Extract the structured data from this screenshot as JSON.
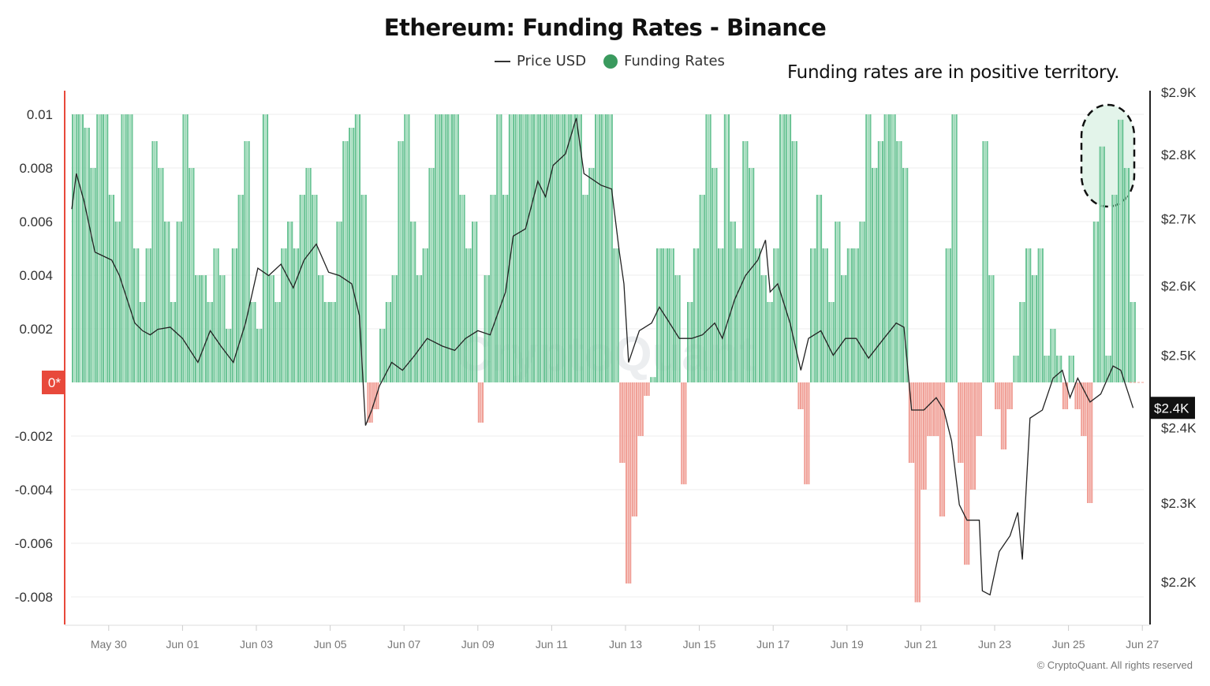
{
  "title": "Ethereum: Funding Rates - Binance",
  "legend": {
    "price_label": "Price USD",
    "funding_label": "Funding Rates"
  },
  "annotation": "Funding rates are in positive territory.",
  "copyright": "© CryptoQuant. All rights reserved",
  "watermark": "CryptoQuant",
  "colors": {
    "positive": "#6cc496",
    "positive_alt": "#a3dcbc",
    "negative": "#f0a097",
    "price_line": "#222222",
    "zero_badge": "#e8493b",
    "left_axis": "#e8493b",
    "highlight_fill": "#e3f4ea"
  },
  "chart_data": {
    "type": "bar+line",
    "title": "Ethereum: Funding Rates - Binance",
    "left_axis": {
      "ticks": [
        "0.01",
        "0.008",
        "0.006",
        "0.004",
        "0.002",
        "0*",
        "-0.002",
        "-0.004",
        "-0.006",
        "-0.008"
      ],
      "range": [
        -0.009,
        0.01
      ]
    },
    "right_axis": {
      "scale": "log",
      "ticks": [
        "$2.9K",
        "$2.8K",
        "$2.7K",
        "$2.6K",
        "$2.5K",
        "$2.4K",
        "$2.3K",
        "$2.2K"
      ],
      "tick_values": [
        2900,
        2800,
        2700,
        2600,
        2500,
        2400,
        2300,
        2200
      ],
      "current_price_badge": "$2.4K",
      "current_price": 2427
    },
    "x_ticks": [
      "May 30",
      "Jun 01",
      "Jun 03",
      "Jun 05",
      "Jun 07",
      "Jun 09",
      "Jun 11",
      "Jun 13",
      "Jun 15",
      "Jun 17",
      "Jun 19",
      "Jun 21",
      "Jun 23",
      "Jun 25",
      "Jun 27"
    ],
    "grid": true,
    "highlight": "last two funding rate peaks (dashed outline)",
    "funding_rates_4h": [
      {
        "date": "05-29",
        "values": [
          0.01,
          0.01,
          0.0095,
          0.008,
          0.01,
          0.01
        ]
      },
      {
        "date": "05-30",
        "values": [
          0.007,
          0.006,
          0.01,
          0.01,
          0.005,
          0.003
        ]
      },
      {
        "date": "05-31",
        "values": [
          0.005,
          0.009,
          0.008,
          0.006,
          0.003,
          0.006
        ]
      },
      {
        "date": "06-01",
        "values": [
          0.01,
          0.008,
          0.004,
          0.004,
          0.003,
          0.005
        ]
      },
      {
        "date": "06-02",
        "values": [
          0.004,
          0.002,
          0.005,
          0.007,
          0.009,
          0.003
        ]
      },
      {
        "date": "06-03",
        "values": [
          0.002,
          0.01,
          0.004,
          0.003,
          0.005,
          0.006
        ]
      },
      {
        "date": "06-04",
        "values": [
          0.005,
          0.007,
          0.008,
          0.007,
          0.004,
          0.003
        ]
      },
      {
        "date": "06-05",
        "values": [
          0.003,
          0.006,
          0.009,
          0.0095,
          0.01,
          0.007
        ]
      },
      {
        "date": "06-06",
        "values": [
          -0.0015,
          -0.001,
          0.002,
          0.003,
          0.004,
          0.009
        ]
      },
      {
        "date": "06-07",
        "values": [
          0.01,
          0.006,
          0.004,
          0.005,
          0.008,
          0.01
        ]
      },
      {
        "date": "06-08",
        "values": [
          0.01,
          0.01,
          0.01,
          0.007,
          0.005,
          0.006
        ]
      },
      {
        "date": "06-09",
        "values": [
          -0.0015,
          0.004,
          0.007,
          0.01,
          0.007,
          0.01
        ]
      },
      {
        "date": "06-10",
        "values": [
          0.01,
          0.01,
          0.01,
          0.01,
          0.01,
          0.01
        ]
      },
      {
        "date": "06-11",
        "values": [
          0.01,
          0.01,
          0.01,
          0.01,
          0.01,
          0.007
        ]
      },
      {
        "date": "06-12",
        "values": [
          0.008,
          0.01,
          0.01,
          0.01,
          0.005,
          -0.003
        ]
      },
      {
        "date": "06-13",
        "values": [
          -0.0075,
          -0.005,
          -0.002,
          -0.0005,
          0.0002,
          0.005
        ]
      },
      {
        "date": "06-14",
        "values": [
          0.005,
          0.005,
          0.004,
          -0.0038,
          0.003,
          0.005
        ]
      },
      {
        "date": "06-15",
        "values": [
          0.007,
          0.01,
          0.008,
          0.005,
          0.01,
          0.006
        ]
      },
      {
        "date": "06-16",
        "values": [
          0.005,
          0.009,
          0.008,
          0.005,
          0.004,
          0.003
        ]
      },
      {
        "date": "06-17",
        "values": [
          0.005,
          0.01,
          0.01,
          0.009,
          -0.001,
          -0.0038
        ]
      },
      {
        "date": "06-18",
        "values": [
          0.005,
          0.007,
          0.005,
          0.003,
          0.006,
          0.004
        ]
      },
      {
        "date": "06-19",
        "values": [
          0.005,
          0.005,
          0.006,
          0.01,
          0.008,
          0.009
        ]
      },
      {
        "date": "06-20",
        "values": [
          0.01,
          0.01,
          0.009,
          0.008,
          -0.003,
          -0.0082
        ]
      },
      {
        "date": "06-21",
        "values": [
          -0.004,
          -0.002,
          -0.002,
          -0.005,
          0.005,
          0.01
        ]
      },
      {
        "date": "06-22",
        "values": [
          -0.003,
          -0.0068,
          -0.004,
          -0.002,
          0.009,
          0.004
        ]
      },
      {
        "date": "06-23",
        "values": [
          -0.001,
          -0.0025,
          -0.001,
          0.001,
          0.003,
          0.005
        ]
      },
      {
        "date": "06-24",
        "values": [
          0.004,
          0.005,
          0.001,
          0.002,
          0.001,
          -0.001
        ]
      },
      {
        "date": "06-25",
        "values": [
          0.001,
          -0.001,
          -0.002,
          -0.0045,
          0.006,
          0.0088
        ]
      },
      {
        "date": "06-26",
        "values": [
          0.001,
          0.007,
          0.0098,
          0.008,
          0.003
        ]
      }
    ],
    "price_usd": [
      [
        "05-29T00:00",
        2715
      ],
      [
        "05-29T03:00",
        2770
      ],
      [
        "05-29T08:00",
        2727
      ],
      [
        "05-29T15:00",
        2650
      ],
      [
        "05-30T02:00",
        2638
      ],
      [
        "05-30T07:00",
        2615
      ],
      [
        "05-30T17:00",
        2546
      ],
      [
        "05-30T22:00",
        2535
      ],
      [
        "05-31T03:00",
        2529
      ],
      [
        "05-31T08:00",
        2537
      ],
      [
        "05-31T16:00",
        2540
      ],
      [
        "06-01T00:00",
        2524
      ],
      [
        "06-01T10:00",
        2490
      ],
      [
        "06-01T18:00",
        2535
      ],
      [
        "06-02T01:00",
        2513
      ],
      [
        "06-02T09:00",
        2490
      ],
      [
        "06-02T17:00",
        2546
      ],
      [
        "06-03T01:00",
        2626
      ],
      [
        "06-03T08:00",
        2615
      ],
      [
        "06-03T16:00",
        2632
      ],
      [
        "06-04T00:00",
        2597
      ],
      [
        "06-04T07:00",
        2638
      ],
      [
        "06-04T15:00",
        2662
      ],
      [
        "06-04T23:00",
        2620
      ],
      [
        "06-05T06:00",
        2615
      ],
      [
        "06-05T14:00",
        2603
      ],
      [
        "06-05T19:00",
        2557
      ],
      [
        "06-05T23:00",
        2403
      ],
      [
        "06-06T03:00",
        2424
      ],
      [
        "06-06T08:00",
        2457
      ],
      [
        "06-06T16:00",
        2490
      ],
      [
        "06-06T23:00",
        2479
      ],
      [
        "06-07T07:00",
        2500
      ],
      [
        "06-07T15:00",
        2524
      ],
      [
        "06-08T01:00",
        2513
      ],
      [
        "06-08T09:00",
        2507
      ],
      [
        "06-08T16:00",
        2524
      ],
      [
        "06-09T00:00",
        2535
      ],
      [
        "06-09T08:00",
        2529
      ],
      [
        "06-09T18:00",
        2591
      ],
      [
        "06-09T23:00",
        2674
      ],
      [
        "06-10T07:00",
        2685
      ],
      [
        "06-10T15:00",
        2758
      ],
      [
        "06-10T20:00",
        2734
      ],
      [
        "06-11T01:00",
        2783
      ],
      [
        "06-11T09:00",
        2801
      ],
      [
        "06-11T16:00",
        2858
      ],
      [
        "06-11T21:00",
        2770
      ],
      [
        "06-12T08:00",
        2752
      ],
      [
        "06-12T15:00",
        2746
      ],
      [
        "06-12T20:00",
        2650
      ],
      [
        "06-12T23:00",
        2603
      ],
      [
        "06-13T02:00",
        2490
      ],
      [
        "06-13T09:00",
        2535
      ],
      [
        "06-13T17:00",
        2546
      ],
      [
        "06-13T22:00",
        2569
      ],
      [
        "06-14T03:00",
        2552
      ],
      [
        "06-14T11:00",
        2524
      ],
      [
        "06-14T19:00",
        2524
      ],
      [
        "06-15T02:00",
        2529
      ],
      [
        "06-15T10:00",
        2546
      ],
      [
        "06-15T15:00",
        2524
      ],
      [
        "06-15T23:00",
        2580
      ],
      [
        "06-16T06:00",
        2615
      ],
      [
        "06-16T14:00",
        2638
      ],
      [
        "06-16T19:00",
        2668
      ],
      [
        "06-16T22:00",
        2591
      ],
      [
        "06-17T03:00",
        2603
      ],
      [
        "06-17T11:00",
        2546
      ],
      [
        "06-17T18:00",
        2479
      ],
      [
        "06-17T23:00",
        2524
      ],
      [
        "06-18T07:00",
        2535
      ],
      [
        "06-18T15:00",
        2500
      ],
      [
        "06-18T23:00",
        2524
      ],
      [
        "06-19T06:00",
        2524
      ],
      [
        "06-19T14:00",
        2496
      ],
      [
        "06-20T00:00",
        2524
      ],
      [
        "06-20T08:00",
        2546
      ],
      [
        "06-20T13:00",
        2540
      ],
      [
        "06-20T18:00",
        2424
      ],
      [
        "06-21T02:00",
        2424
      ],
      [
        "06-21T10:00",
        2441
      ],
      [
        "06-21T15:00",
        2424
      ],
      [
        "06-21T20:00",
        2382
      ],
      [
        "06-22T01:00",
        2298
      ],
      [
        "06-22T06:00",
        2278
      ],
      [
        "06-22T14:00",
        2278
      ],
      [
        "06-22T16:00",
        2189
      ],
      [
        "06-22T21:00",
        2184
      ],
      [
        "06-23T03:00",
        2238
      ],
      [
        "06-23T10:00",
        2258
      ],
      [
        "06-23T15:00",
        2288
      ],
      [
        "06-23T18:00",
        2228
      ],
      [
        "06-23T23:00",
        2413
      ],
      [
        "06-24T07:00",
        2424
      ],
      [
        "06-24T14:00",
        2468
      ],
      [
        "06-24T20:00",
        2479
      ],
      [
        "06-25T01:00",
        2441
      ],
      [
        "06-25T06:00",
        2468
      ],
      [
        "06-25T14:00",
        2435
      ],
      [
        "06-25T21:00",
        2446
      ],
      [
        "06-26T05:00",
        2485
      ],
      [
        "06-26T10:00",
        2479
      ],
      [
        "06-26T18:00",
        2427
      ]
    ]
  }
}
